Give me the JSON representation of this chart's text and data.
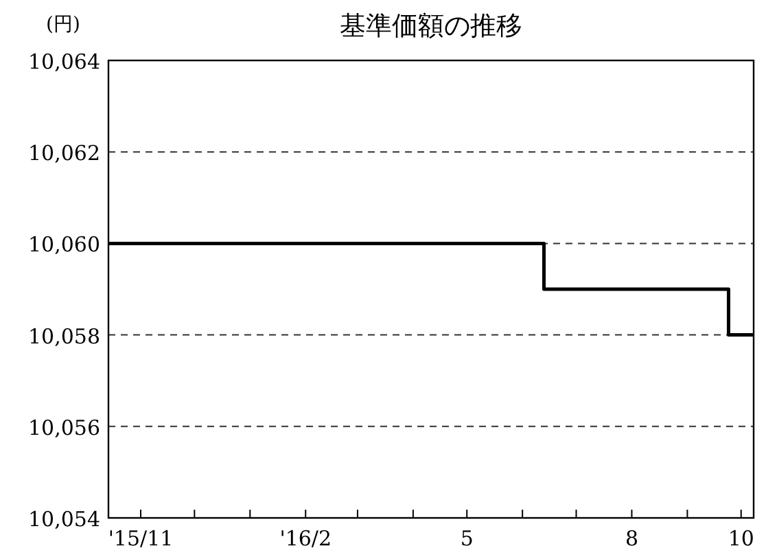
{
  "chart_data": {
    "type": "step",
    "title": "基準価額の推移",
    "ylabel": "(円)",
    "series": [
      {
        "color": "#000000",
        "x": [
          "2015-10-14",
          "2016-06-13",
          "2016-09-24",
          "2016-10-08"
        ],
        "values": [
          10060,
          10059,
          10058,
          10058
        ]
      }
    ],
    "xlim": [
      "2015-10-14",
      "2016-10-08"
    ],
    "xticks": [
      {
        "value": "2015-11-01",
        "label": "'15/11"
      },
      {
        "value": "2015-12-01",
        "label": null
      },
      {
        "value": "2016-01-01",
        "label": null
      },
      {
        "value": "2016-02-01",
        "label": "'16/2"
      },
      {
        "value": "2016-03-01",
        "label": null
      },
      {
        "value": "2016-04-01",
        "label": null
      },
      {
        "value": "2016-05-01",
        "label": "5"
      },
      {
        "value": "2016-06-01",
        "label": null
      },
      {
        "value": "2016-07-01",
        "label": null
      },
      {
        "value": "2016-08-01",
        "label": "8"
      },
      {
        "value": "2016-09-01",
        "label": null
      },
      {
        "value": "2016-10-01",
        "label": "10"
      }
    ],
    "ylim": [
      10054,
      10064
    ],
    "yticks": [
      {
        "value": 10054,
        "label": "10,054"
      },
      {
        "value": 10056,
        "label": "10,056"
      },
      {
        "value": 10058,
        "label": "10,058"
      },
      {
        "value": 10060,
        "label": "10,060"
      },
      {
        "value": 10062,
        "label": "10,062"
      },
      {
        "value": 10064,
        "label": "10,064"
      }
    ],
    "grid": "y",
    "line_style": "solid"
  }
}
